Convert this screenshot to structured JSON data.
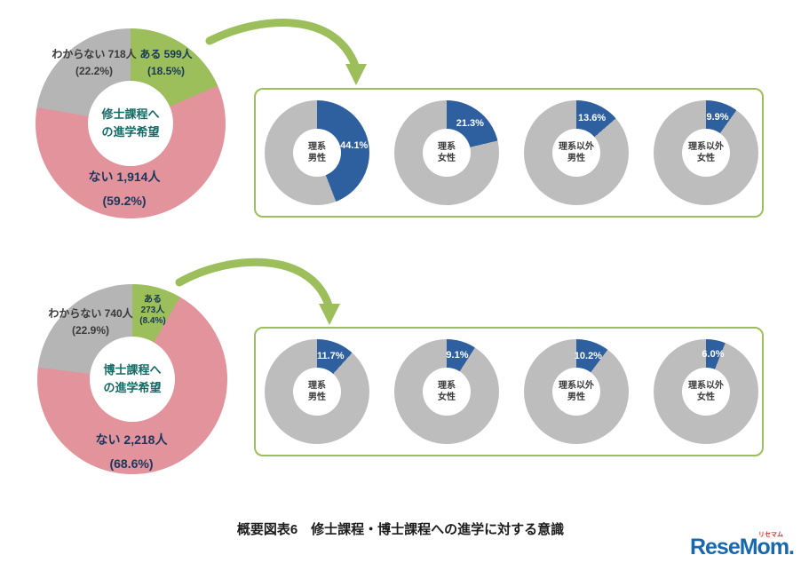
{
  "page": {
    "caption": "概要図表6　修士課程・博士課程への進学に対する意識",
    "logo": {
      "text": "ReseMom.",
      "ruby": "リセマム"
    }
  },
  "chart_data": [
    {
      "type": "pie",
      "title": "修士課程への進学希望",
      "center_lines": [
        "修士課程へ",
        "の進学希望"
      ],
      "legend_position": "on-slices",
      "slices": [
        {
          "name": "ある",
          "label": "ある 599人",
          "pct_label": "(18.5%)",
          "value": 599,
          "pct": 18.5,
          "color": "#9CBF5B"
        },
        {
          "name": "ない",
          "label": "ない 1,914人",
          "pct_label": "(59.2%)",
          "value": 1914,
          "pct": 59.2,
          "color": "#E2939B"
        },
        {
          "name": "わからない",
          "label": "わからない 718人",
          "pct_label": "(22.2%)",
          "value": 718,
          "pct": 22.2,
          "color": "#B5B5B5"
        }
      ]
    },
    {
      "type": "pie-group",
      "pies": [
        {
          "center_lines": [
            "理系",
            "男性"
          ],
          "pct": 44.1,
          "label": "44.1%",
          "slices": [
            {
              "pct": 44.1,
              "color": "#2E5F9E"
            },
            {
              "pct": 55.9,
              "color": "#BDBDBD"
            }
          ]
        },
        {
          "center_lines": [
            "理系",
            "女性"
          ],
          "pct": 21.3,
          "label": "21.3%",
          "slices": [
            {
              "pct": 21.3,
              "color": "#2E5F9E"
            },
            {
              "pct": 78.7,
              "color": "#BDBDBD"
            }
          ]
        },
        {
          "center_lines": [
            "理系以外",
            "男性"
          ],
          "pct": 13.6,
          "label": "13.6%",
          "slices": [
            {
              "pct": 13.6,
              "color": "#2E5F9E"
            },
            {
              "pct": 86.4,
              "color": "#BDBDBD"
            }
          ]
        },
        {
          "center_lines": [
            "理系以外",
            "女性"
          ],
          "pct": 9.9,
          "label": "9.9%",
          "slices": [
            {
              "pct": 9.9,
              "color": "#2E5F9E"
            },
            {
              "pct": 90.1,
              "color": "#BDBDBD"
            }
          ]
        }
      ]
    },
    {
      "type": "pie",
      "title": "博士課程への進学希望",
      "center_lines": [
        "博士課程へ",
        "の進学希望"
      ],
      "legend_position": "on-slices",
      "slices": [
        {
          "name": "ある",
          "label_lines": [
            "ある",
            "273人",
            "(8.4%)"
          ],
          "value": 273,
          "pct": 8.4,
          "color": "#9CBF5B"
        },
        {
          "name": "ない",
          "label": "ない 2,218人",
          "pct_label": "(68.6%)",
          "value": 2218,
          "pct": 68.6,
          "color": "#E2939B"
        },
        {
          "name": "わからない",
          "label": "わからない 740人",
          "pct_label": "(22.9%)",
          "value": 740,
          "pct": 22.9,
          "color": "#B5B5B5"
        }
      ]
    },
    {
      "type": "pie-group",
      "pies": [
        {
          "center_lines": [
            "理系",
            "男性"
          ],
          "pct": 11.7,
          "label": "11.7%",
          "slices": [
            {
              "pct": 11.7,
              "color": "#2E5F9E"
            },
            {
              "pct": 88.3,
              "color": "#BDBDBD"
            }
          ]
        },
        {
          "center_lines": [
            "理系",
            "女性"
          ],
          "pct": 9.1,
          "label": "9.1%",
          "slices": [
            {
              "pct": 9.1,
              "color": "#2E5F9E"
            },
            {
              "pct": 90.9,
              "color": "#BDBDBD"
            }
          ]
        },
        {
          "center_lines": [
            "理系以外",
            "男性"
          ],
          "pct": 10.2,
          "label": "10.2%",
          "slices": [
            {
              "pct": 10.2,
              "color": "#2E5F9E"
            },
            {
              "pct": 89.8,
              "color": "#BDBDBD"
            }
          ]
        },
        {
          "center_lines": [
            "理系以外",
            "女性"
          ],
          "pct": 6.0,
          "label": "6.0%",
          "slices": [
            {
              "pct": 6.0,
              "color": "#2E5F9E"
            },
            {
              "pct": 94.0,
              "color": "#BDBDBD"
            }
          ]
        }
      ]
    }
  ]
}
